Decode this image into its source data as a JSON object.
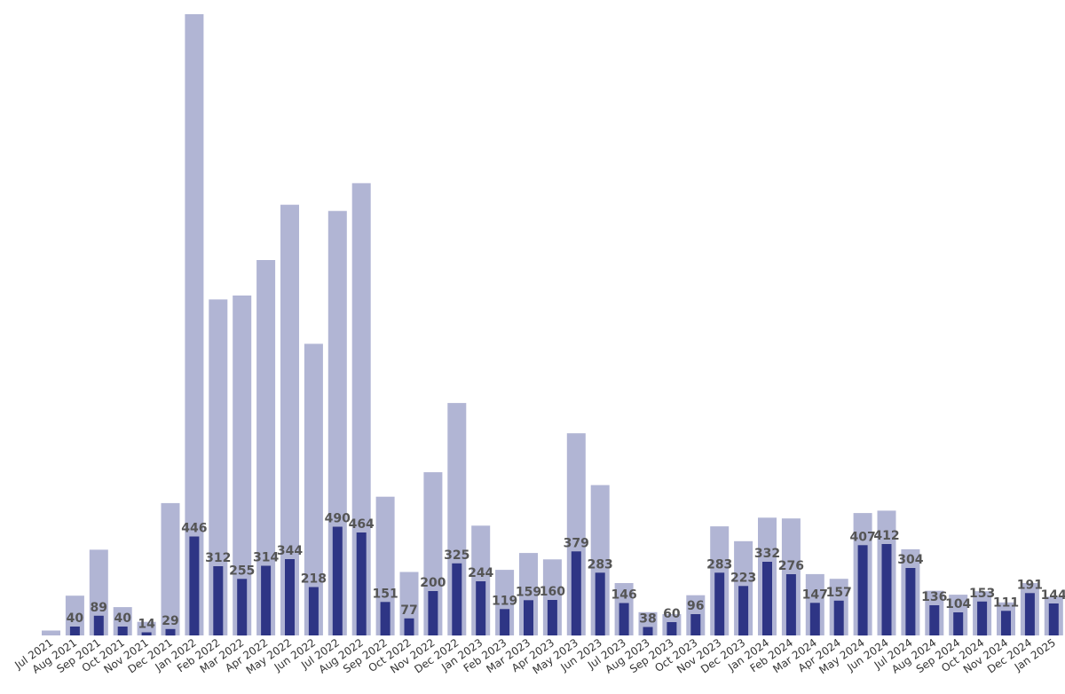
{
  "chart_data": {
    "type": "bar",
    "title": "",
    "xlabel": "",
    "ylabel": "",
    "grid": false,
    "legend": "none",
    "categories": [
      "Jul 2021",
      "Aug 2021",
      "Sep 2021",
      "Oct 2021",
      "Nov 2021",
      "Dec 2021",
      "Jan 2022",
      "Feb 2022",
      "Mar 2022",
      "Apr 2022",
      "May 2022",
      "Jun 2022",
      "Jul 2022",
      "Aug 2022",
      "Sep 2022",
      "Oct 2022",
      "Nov 2022",
      "Dec 2022",
      "Jan 2023",
      "Feb 2023",
      "Mar 2023",
      "Apr 2023",
      "May 2023",
      "Jun 2023",
      "Jul 2023",
      "Aug 2023",
      "Sep 2023",
      "Oct 2023",
      "Nov 2023",
      "Dec 2023",
      "Jan 2024",
      "Feb 2024",
      "Mar 2024",
      "Apr 2024",
      "May 2024",
      "Jun 2024",
      "Jul 2024",
      "Aug 2024",
      "Sep 2024",
      "Oct 2024",
      "Nov 2024",
      "Dec 2024",
      "Jan 2025"
    ],
    "series": [
      {
        "values": [
          25,
          205,
          442,
          146,
          70,
          682,
          3202,
          1732,
          1752,
          1935,
          2220,
          1503,
          2188,
          2331,
          715,
          327,
          841,
          1198,
          566,
          338,
          425,
          392,
          1042,
          775,
          270,
          120,
          110,
          207,
          562,
          486,
          607,
          603,
          316,
          292,
          631,
          643,
          444,
          230,
          210,
          228,
          170,
          270,
          200
        ],
        "color": "#b1b5d4"
      },
      {
        "values": [
          null,
          40,
          89,
          40,
          14,
          29,
          446,
          312,
          255,
          314,
          344,
          218,
          490,
          464,
          151,
          77,
          200,
          325,
          244,
          119,
          159,
          160,
          379,
          283,
          146,
          38,
          60,
          96,
          283,
          223,
          332,
          276,
          147,
          157,
          407,
          412,
          304,
          136,
          104,
          153,
          111,
          191,
          144
        ],
        "color": "#2e3585"
      }
    ]
  }
}
